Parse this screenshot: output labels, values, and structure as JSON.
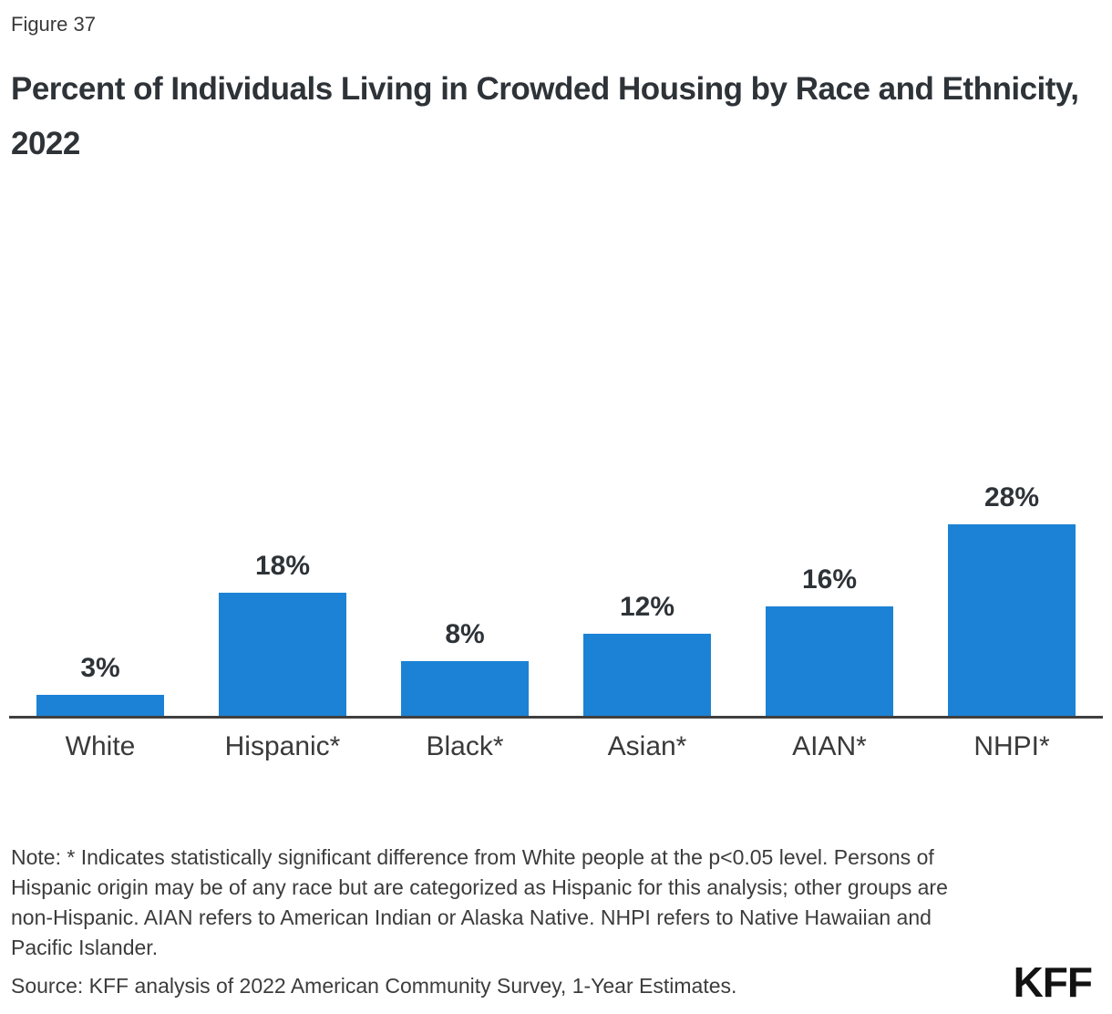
{
  "figure_label": "Figure 37",
  "title": "Percent of Individuals Living in Crowded Housing by Race and Ethnicity, 2022",
  "chart_data": {
    "type": "bar",
    "title": "Percent of Individuals Living in Crowded Housing by Race and Ethnicity, 2022",
    "categories": [
      "White",
      "Hispanic*",
      "Black*",
      "Asian*",
      "AIAN*",
      "NHPI*"
    ],
    "values": [
      3,
      18,
      8,
      12,
      16,
      28
    ],
    "value_labels": [
      "3%",
      "18%",
      "8%",
      "12%",
      "16%",
      "28%"
    ],
    "xlabel": "",
    "ylabel": "",
    "ylim": [
      0,
      30
    ],
    "grid": false,
    "legend": "none",
    "bar_color": "#1c82d5",
    "axis_color": "#404040"
  },
  "note": "Note: * Indicates statistically significant difference from White people at the p<0.05 level. Persons of Hispanic origin may be of any race but are categorized as Hispanic for this analysis; other groups are non-Hispanic. AIAN refers to American Indian or Alaska Native. NHPI refers to Native Hawaiian and Pacific Islander.",
  "source": "Source: KFF analysis of 2022 American Community Survey, 1-Year Estimates.",
  "logo": "KFF"
}
